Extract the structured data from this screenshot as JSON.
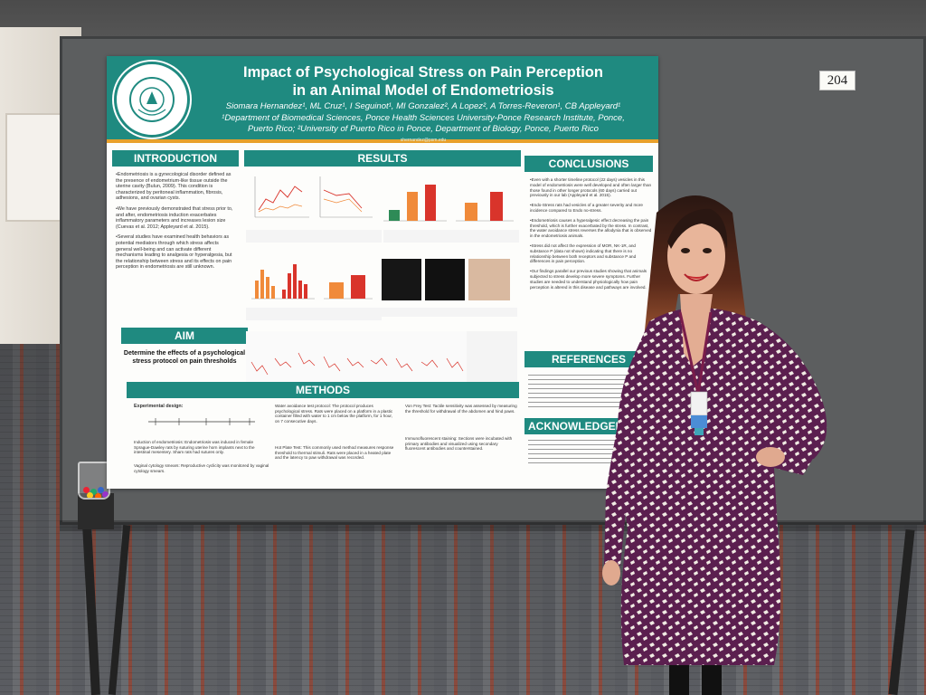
{
  "booth_number": "204",
  "poster": {
    "logo": {
      "arc_text": "PONCE HEALTH SCIENCES UNIVERSITY",
      "year": "1977"
    },
    "title_line1": "Impact of Psychological Stress on Pain Perception",
    "title_line2": "in an Animal Model of Endometriosis",
    "authors": "Siomara Hernandez¹, ML Cruz¹, I Seguinot¹, MI Gonzalez², A Lopez², A Torres-Reveron¹, CB Appleyard¹",
    "affiliation_1": "¹Department of Biomedical Sciences, Ponce Health Sciences University-Ponce Research Institute, Ponce,",
    "affiliation_2": "Puerto Rico; ²University of Puerto Rico in Ponce, Department of Biology, Ponce, Puerto Rico",
    "email": "shernandez@psm.edu",
    "sections": {
      "introduction": "INTRODUCTION",
      "results": "RESULTS",
      "conclusions": "CONCLUSIONS",
      "aim": "AIM",
      "methods": "METHODS",
      "references": "REFERENCES",
      "acknowledgements": "ACKNOWLEDGEM"
    },
    "introduction": [
      "Endometriosis is a gynecological disorder defined as the presence of endometrium-like tissue outside the uterine cavity (Bulun, 2009). This condition is characterized by peritoneal inflammation, fibrosis, adhesions, and ovarian cysts.",
      "We have previously demonstrated that stress prior to, and after, endometriosis induction exacerbates inflammatory parameters and increases lesion size (Cuevas et al. 2012; Appleyard et al. 2015).",
      "Several studies have examined health behaviors as potential mediators through which stress affects general well-being and can activate different mechanisms leading to analgesia or hyperalgesia, but the relationship between stress and its effects on pain perception in endometriosis are still unknown."
    ],
    "aim_text": "Determine the effects of a psychological stress protocol on pain thresholds",
    "conclusions": [
      "Even with a shorter timeline protocol (22 days) vesicles in this model of endometriosis were well developed and often larger than those found in other longer protocols (60 days) carried out previously in our lab (Appleyard et al. 2015).",
      "Endo-Stress rats had vesicles of a greater severity and more incidence compared to Endo no-stress.",
      "Endometriosis causes a hyperalgesic effect decreasing the pain threshold, which is further exacerbated by the stress. In contrast, the water avoidance stress reverses the allodynia that is observed in the endometriosis animals.",
      "Stress did not affect the expression of MOR, NK-1R, and substance P (data not shown) indicating that there is no relationship between both receptors and substance P and differences in pain perception.",
      "Our findings parallel our previous studies showing that animals subjected to stress develop more severe symptoms. Further studies are needed to understand physiologically how pain perception is altered in this disease and pathways are involved."
    ],
    "methods": {
      "design_label": "Experimental design:",
      "induction": "Induction of endometriosis: Endometriosis was induced in female Sprague-Dawley rats by suturing uterine horn implants next to the intestinal mesentery. Sham rats had sutures only.",
      "cytology": "Vaginal cytology smears: Reproductive cyclicity was monitored by vaginal cytology smears.",
      "wat": "Water avoidance test protocol: The protocol produces psychological stress. Rats were placed on a platform in a plastic container filled with water to 1 cm below the platform, for 1 hour, on 7 consecutive days.",
      "hotplate": "Hot Plate Test: This commonly used method measures response threshold to thermal stimuli. Rats were placed in a heated plate and the latency to paw withdrawal was recorded.",
      "vonfrey": "Von Frey Test: Tactile sensitivity was assessed by measuring the threshold for withdrawal of the abdomen and hind paws.",
      "ihc": "Immunofluorescent staining: Sections were incubated with primary antibodies and visualized using secondary fluorescent antibodies and counterstained."
    }
  },
  "colors": {
    "poster_teal": "#1f8a80",
    "accent_orange": "#e8a02a",
    "bar_red": "#d9342b",
    "bar_orange": "#f08a3a",
    "bar_green": "#2e8b57"
  }
}
